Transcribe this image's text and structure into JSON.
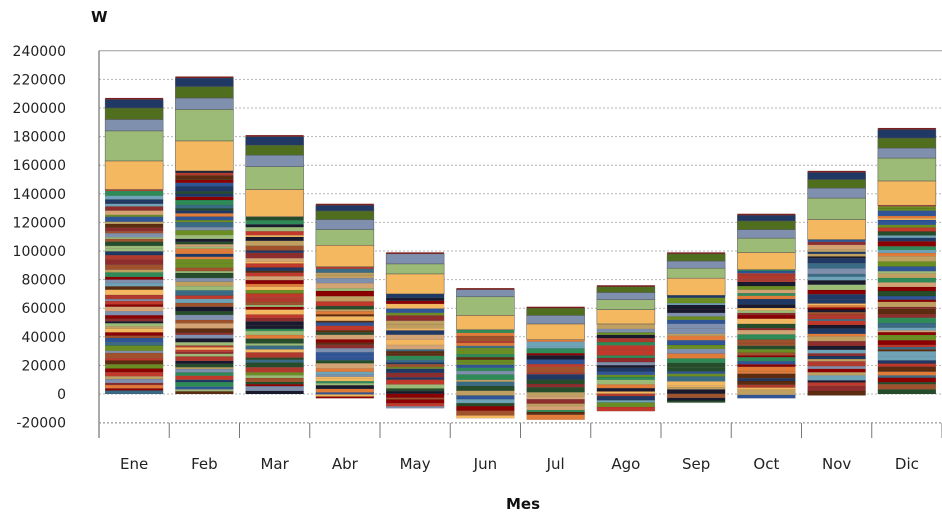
{
  "chart_data": {
    "type": "bar",
    "stacked": true,
    "title": "",
    "xlabel": "Mes",
    "ylabel": "W",
    "ylim": [
      -20000,
      240000
    ],
    "yticks": [
      240000,
      220000,
      200000,
      180000,
      160000,
      140000,
      120000,
      100000,
      80000,
      60000,
      40000,
      20000,
      0,
      -20000
    ],
    "grid": "horizontal-dotted",
    "legend": "none",
    "categories": [
      "Ene",
      "Feb",
      "Mar",
      "Abr",
      "May",
      "Jun",
      "Jul",
      "Ago",
      "Sep",
      "Oct",
      "Nov",
      "Dic"
    ],
    "totals_positive": [
      206000,
      221000,
      180000,
      132000,
      98000,
      73000,
      60000,
      75000,
      98000,
      125000,
      155000,
      185000
    ],
    "totals_negative": [
      0,
      0,
      0,
      -3000,
      -10000,
      -17000,
      -18000,
      -12000,
      -6000,
      -3000,
      -1000,
      0
    ],
    "upper_blocks_note": "upper stacked components visible per month, values in W",
    "upper_blocks": [
      {
        "month": "Ene",
        "values": [
          20000,
          21000,
          8000,
          8000,
          6000
        ]
      },
      {
        "month": "Feb",
        "values": [
          21000,
          22000,
          8000,
          8000,
          6000
        ]
      },
      {
        "month": "Mar",
        "values": [
          19000,
          16000,
          8000,
          7000,
          6000
        ]
      },
      {
        "month": "Abr",
        "values": [
          15000,
          11000,
          7000,
          6000,
          4000
        ]
      },
      {
        "month": "May",
        "values": [
          14000,
          7000,
          7000,
          0,
          0
        ]
      },
      {
        "month": "Jun",
        "values": [
          10000,
          13000,
          5000,
          0,
          0
        ]
      },
      {
        "month": "Jul",
        "values": [
          11000,
          0,
          6000,
          5000,
          0
        ]
      },
      {
        "month": "Ago",
        "values": [
          10000,
          7000,
          5000,
          4000,
          0
        ]
      },
      {
        "month": "Sep",
        "values": [
          12000,
          7000,
          5000,
          5000,
          0
        ]
      },
      {
        "month": "Oct",
        "values": [
          12000,
          10000,
          6000,
          6000,
          4000
        ]
      },
      {
        "month": "Nov",
        "values": [
          14000,
          15000,
          7000,
          6000,
          5000
        ]
      },
      {
        "month": "Dic",
        "values": [
          17000,
          16000,
          7000,
          7000,
          6000
        ]
      }
    ],
    "palette": [
      "#1f3864",
      "#c0392b",
      "#2e8b57",
      "#6b8e23",
      "#8b0000",
      "#2f5597",
      "#f4b860",
      "#9bbb77",
      "#7f8fae",
      "#5b2c0f",
      "#e07b39",
      "#3a6b84",
      "#b03a2e",
      "#d4a373",
      "#264d2b",
      "#c0a060",
      "#6fa3b8",
      "#8e2d2d",
      "#1a1a2e",
      "#a0522d"
    ],
    "color_upper_orange": "#f4b860",
    "color_upper_green": "#9bbb77",
    "color_upper_grey": "#7f8fae",
    "color_upper_darkgreen": "#4f6f1f",
    "color_upper_navy": "#1f3864"
  }
}
